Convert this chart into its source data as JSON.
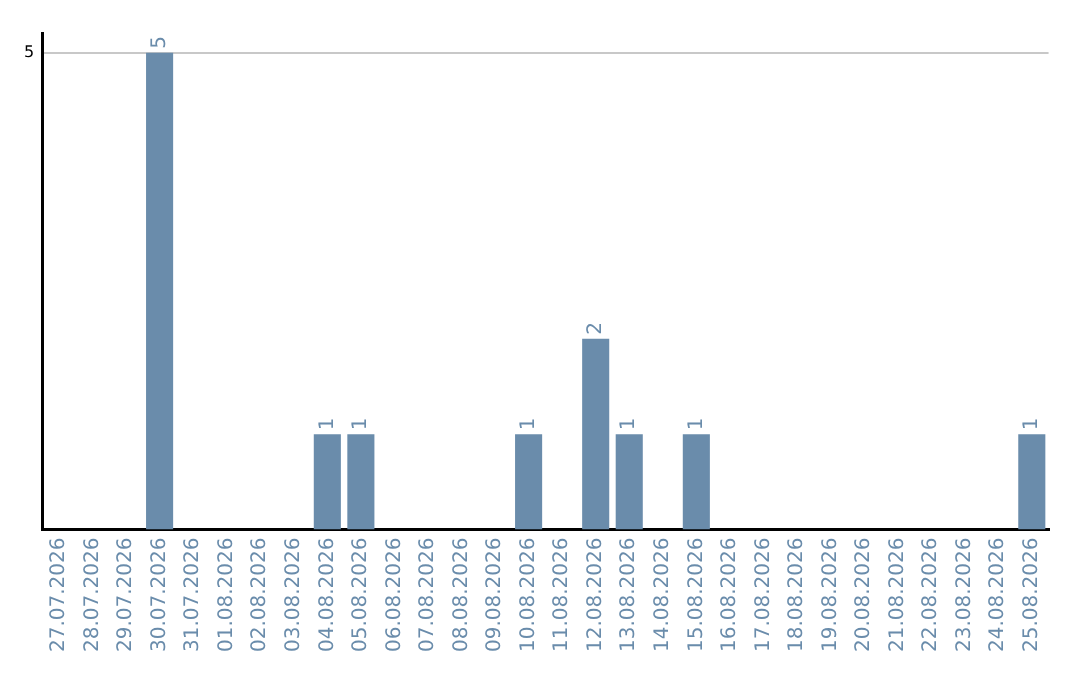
{
  "chart_data": {
    "type": "bar",
    "categories": [
      "27.07.2026",
      "28.07.2026",
      "29.07.2026",
      "30.07.2026",
      "31.07.2026",
      "01.08.2026",
      "02.08.2026",
      "03.08.2026",
      "04.08.2026",
      "05.08.2026",
      "06.08.2026",
      "07.08.2026",
      "08.08.2026",
      "09.08.2026",
      "10.08.2026",
      "11.08.2026",
      "12.08.2026",
      "13.08.2026",
      "14.08.2026",
      "15.08.2026",
      "16.08.2026",
      "17.08.2026",
      "18.08.2026",
      "19.08.2026",
      "20.08.2026",
      "21.08.2026",
      "22.08.2026",
      "23.08.2026",
      "24.08.2026",
      "25.08.2026"
    ],
    "values": [
      0,
      0,
      0,
      5,
      0,
      0,
      0,
      0,
      1,
      1,
      0,
      0,
      0,
      0,
      1,
      0,
      2,
      1,
      0,
      1,
      0,
      0,
      0,
      0,
      0,
      0,
      0,
      0,
      0,
      1
    ],
    "value_labels": [
      null,
      null,
      null,
      "5",
      null,
      null,
      null,
      null,
      "1",
      "1",
      null,
      null,
      null,
      null,
      "1",
      null,
      "2",
      "1",
      null,
      "1",
      null,
      null,
      null,
      null,
      null,
      null,
      null,
      null,
      null,
      "1"
    ],
    "color": "#6a8cab",
    "ylim": [
      0,
      5.2
    ],
    "yticks": [
      5
    ],
    "grid": "y"
  }
}
